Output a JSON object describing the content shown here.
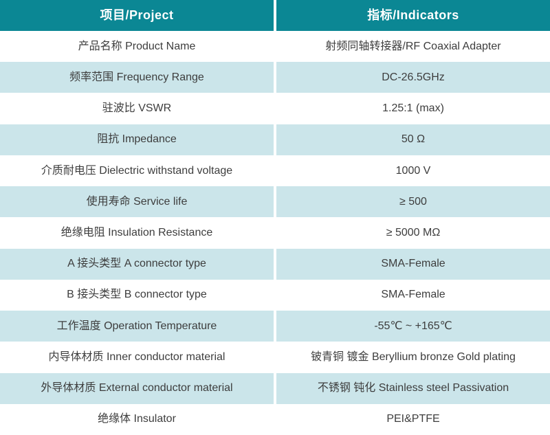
{
  "colors": {
    "header_bg": "#0b8794",
    "header_text": "#ffffff",
    "row_bg": "#ffffff",
    "row_alt_bg": "#cbe5ea",
    "text": "#3d3d3d",
    "divider": "#ffffff"
  },
  "table": {
    "header": {
      "project": "项目/Project",
      "indicators": "指标/Indicators"
    },
    "rows": [
      {
        "project": "产品名称 Product Name",
        "indicator": "射频同轴转接器/RF Coaxial Adapter"
      },
      {
        "project": "频率范围 Frequency Range",
        "indicator": "DC-26.5GHz"
      },
      {
        "project": "驻波比 VSWR",
        "indicator": "1.25:1 (max)"
      },
      {
        "project": "阻抗 Impedance",
        "indicator": "50 Ω"
      },
      {
        "project": "介质耐电压 Dielectric withstand voltage",
        "indicator": "1000 V"
      },
      {
        "project": "使用寿命 Service life",
        "indicator": "≥ 500"
      },
      {
        "project": "绝缘电阻 Insulation Resistance",
        "indicator": "≥ 5000 MΩ"
      },
      {
        "project": "A 接头类型  A connector type",
        "indicator": "SMA-Female"
      },
      {
        "project": "B 接头类型  B connector type",
        "indicator": "SMA-Female"
      },
      {
        "project": "工作温度 Operation Temperature",
        "indicator": "-55℃ ~ +165℃"
      },
      {
        "project": "内导体材质 Inner conductor material",
        "indicator": "铍青铜 镀金 Beryllium bronze Gold plating"
      },
      {
        "project": "外导体材质 External conductor material",
        "indicator": "不锈钢 钝化 Stainless steel Passivation"
      },
      {
        "project": "绝缘体 Insulator",
        "indicator": "PEI&PTFE"
      }
    ]
  }
}
